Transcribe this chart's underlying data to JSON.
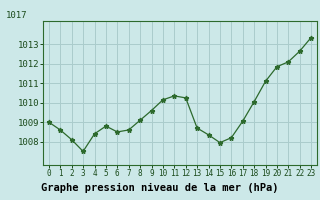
{
  "x": [
    0,
    1,
    2,
    3,
    4,
    5,
    6,
    7,
    8,
    9,
    10,
    11,
    12,
    13,
    14,
    15,
    16,
    17,
    18,
    19,
    20,
    21,
    22,
    23
  ],
  "y": [
    1009.0,
    1008.6,
    1008.1,
    1007.5,
    1008.4,
    1008.8,
    1008.5,
    1008.6,
    1009.1,
    1009.6,
    1010.15,
    1010.35,
    1010.25,
    1008.7,
    1008.35,
    1007.95,
    1008.2,
    1009.05,
    1010.05,
    1011.1,
    1011.85,
    1012.1,
    1012.65,
    1013.35
  ],
  "line_color": "#2d6a2d",
  "marker": "*",
  "background_color": "#cce8e8",
  "grid_color": "#aacccc",
  "xlabel": "Graphe pression niveau de la mer (hPa)",
  "xlabel_bgcolor": "#3a7a3a",
  "xlabel_fgcolor": "#000000",
  "tick_label_color": "#1a4a1a",
  "ylabel_ticks": [
    1008,
    1009,
    1010,
    1011,
    1012,
    1013
  ],
  "ylim": [
    1006.8,
    1014.2
  ],
  "xlim": [
    -0.5,
    23.5
  ],
  "xtick_labels": [
    "0",
    "1",
    "2",
    "3",
    "4",
    "5",
    "6",
    "7",
    "8",
    "9",
    "10",
    "11",
    "12",
    "13",
    "14",
    "15",
    "16",
    "17",
    "18",
    "19",
    "20",
    "21",
    "22",
    "23"
  ],
  "spine_color": "#2d6a2d",
  "top_label": "1017",
  "top_label_color": "#1a4a1a"
}
